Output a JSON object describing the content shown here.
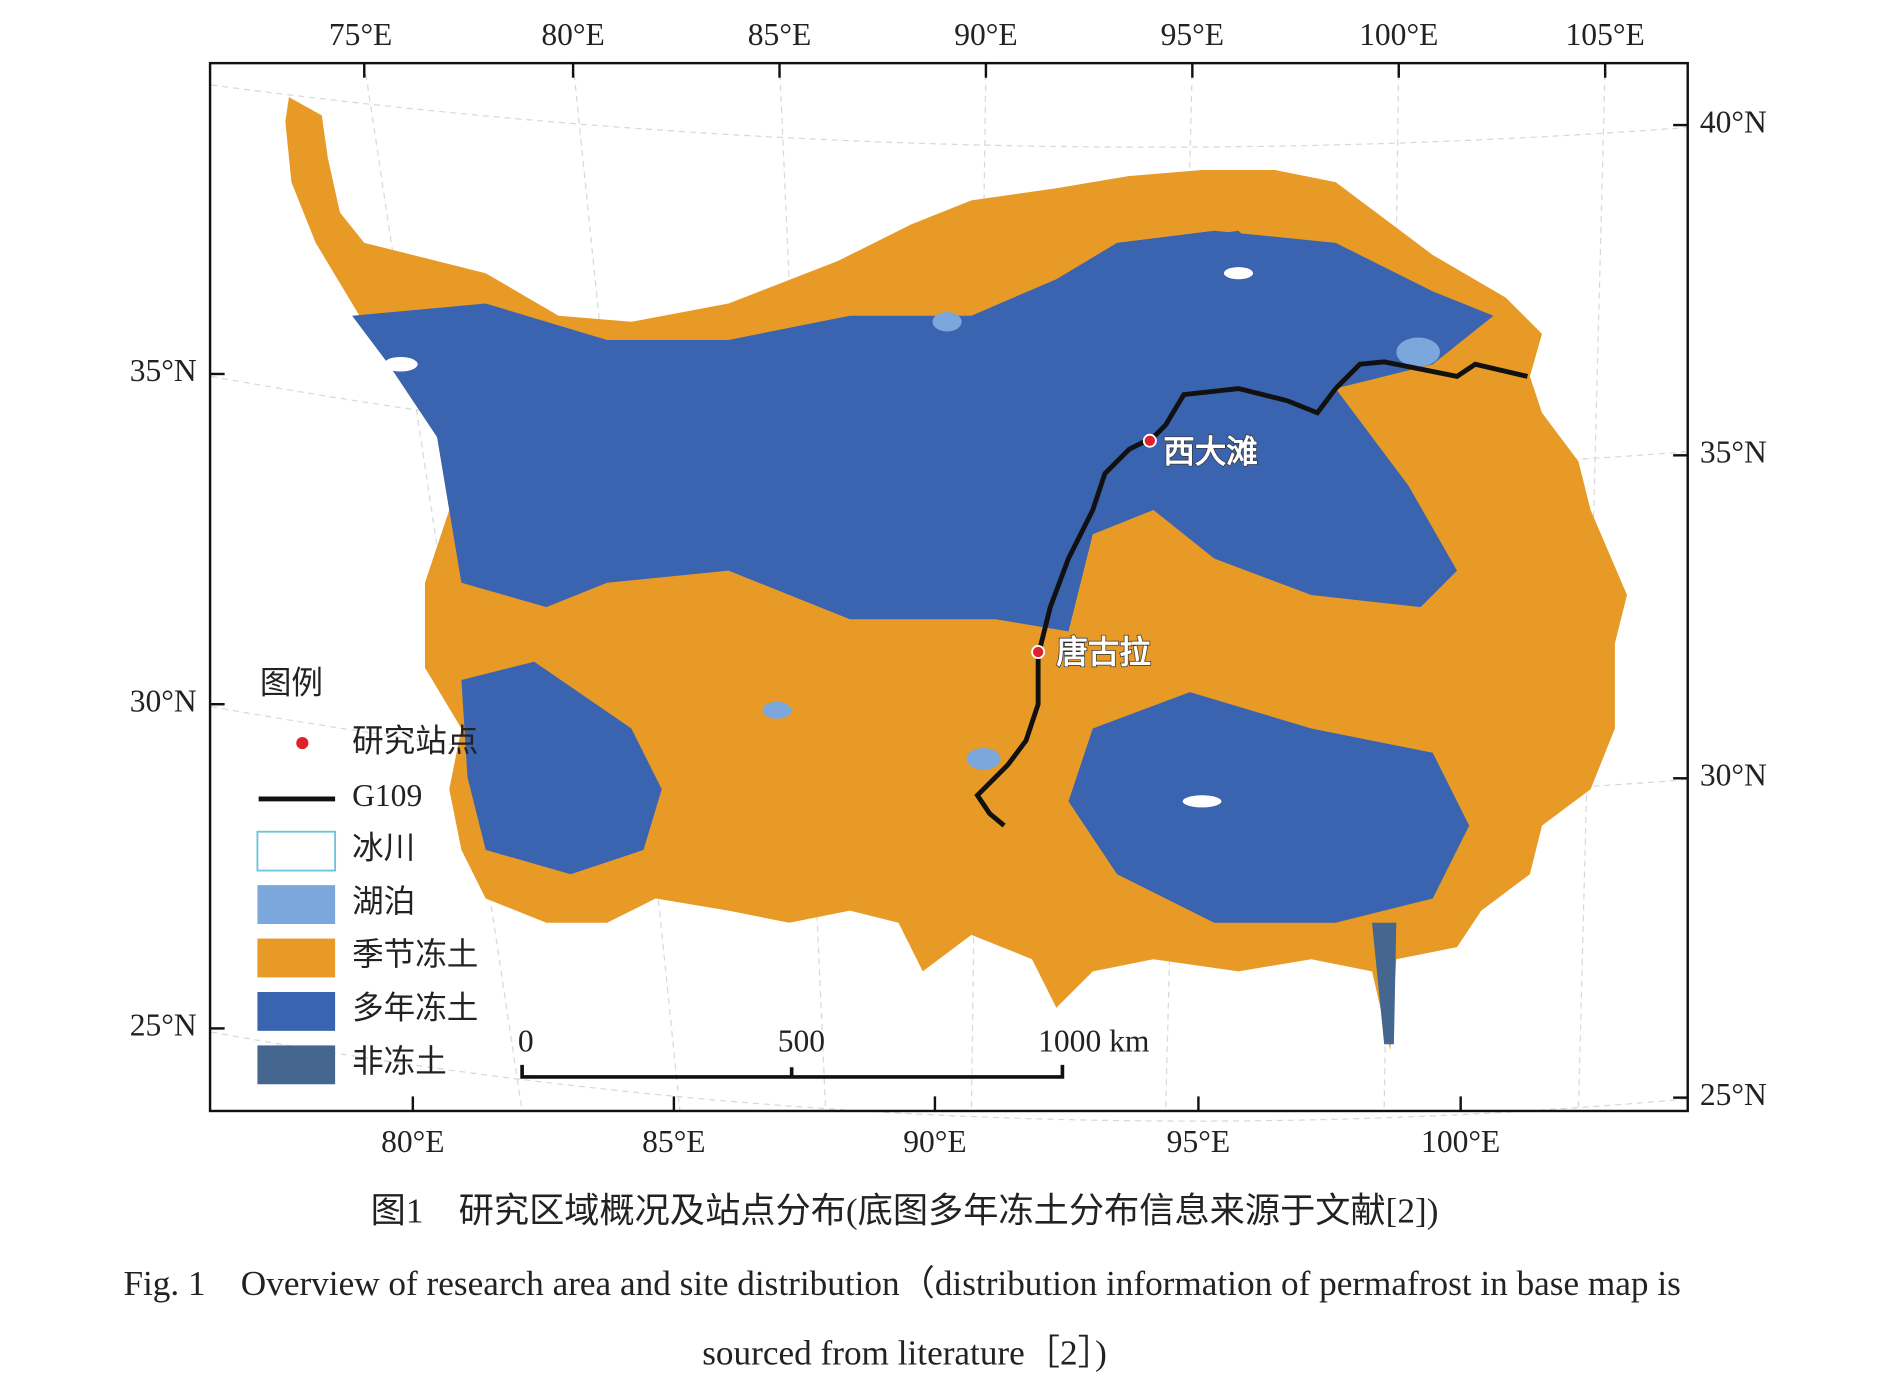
{
  "figure": {
    "top_labels": [
      "75°E",
      "80°E",
      "85°E",
      "90°E",
      "95°E",
      "100°E",
      "105°E"
    ],
    "bottom_labels": [
      "80°E",
      "85°E",
      "90°E",
      "95°E",
      "100°E"
    ],
    "left_labels": [
      "35°N",
      "30°N",
      "25°N"
    ],
    "right_labels": [
      "40°N",
      "35°N",
      "30°N",
      "25°N"
    ],
    "stations": [
      {
        "label": "西大滩"
      },
      {
        "label": "唐古拉"
      }
    ],
    "legend": {
      "title": "图例",
      "items": [
        "研究站点",
        "G109",
        "冰川",
        "湖泊",
        "季节冻土",
        "多年冻土",
        "非冻土"
      ]
    },
    "scale_bar": [
      "0",
      "500",
      "1000 km"
    ]
  },
  "caption": {
    "chinese": "图1　研究区域概况及站点分布(底图多年冻土分布信息来源于文献[2])",
    "english_line1": "Fig. 1　Overview of research area and site distribution（distribution information of permafrost in base map is",
    "english_line2": "sourced from literature［2］)"
  }
}
